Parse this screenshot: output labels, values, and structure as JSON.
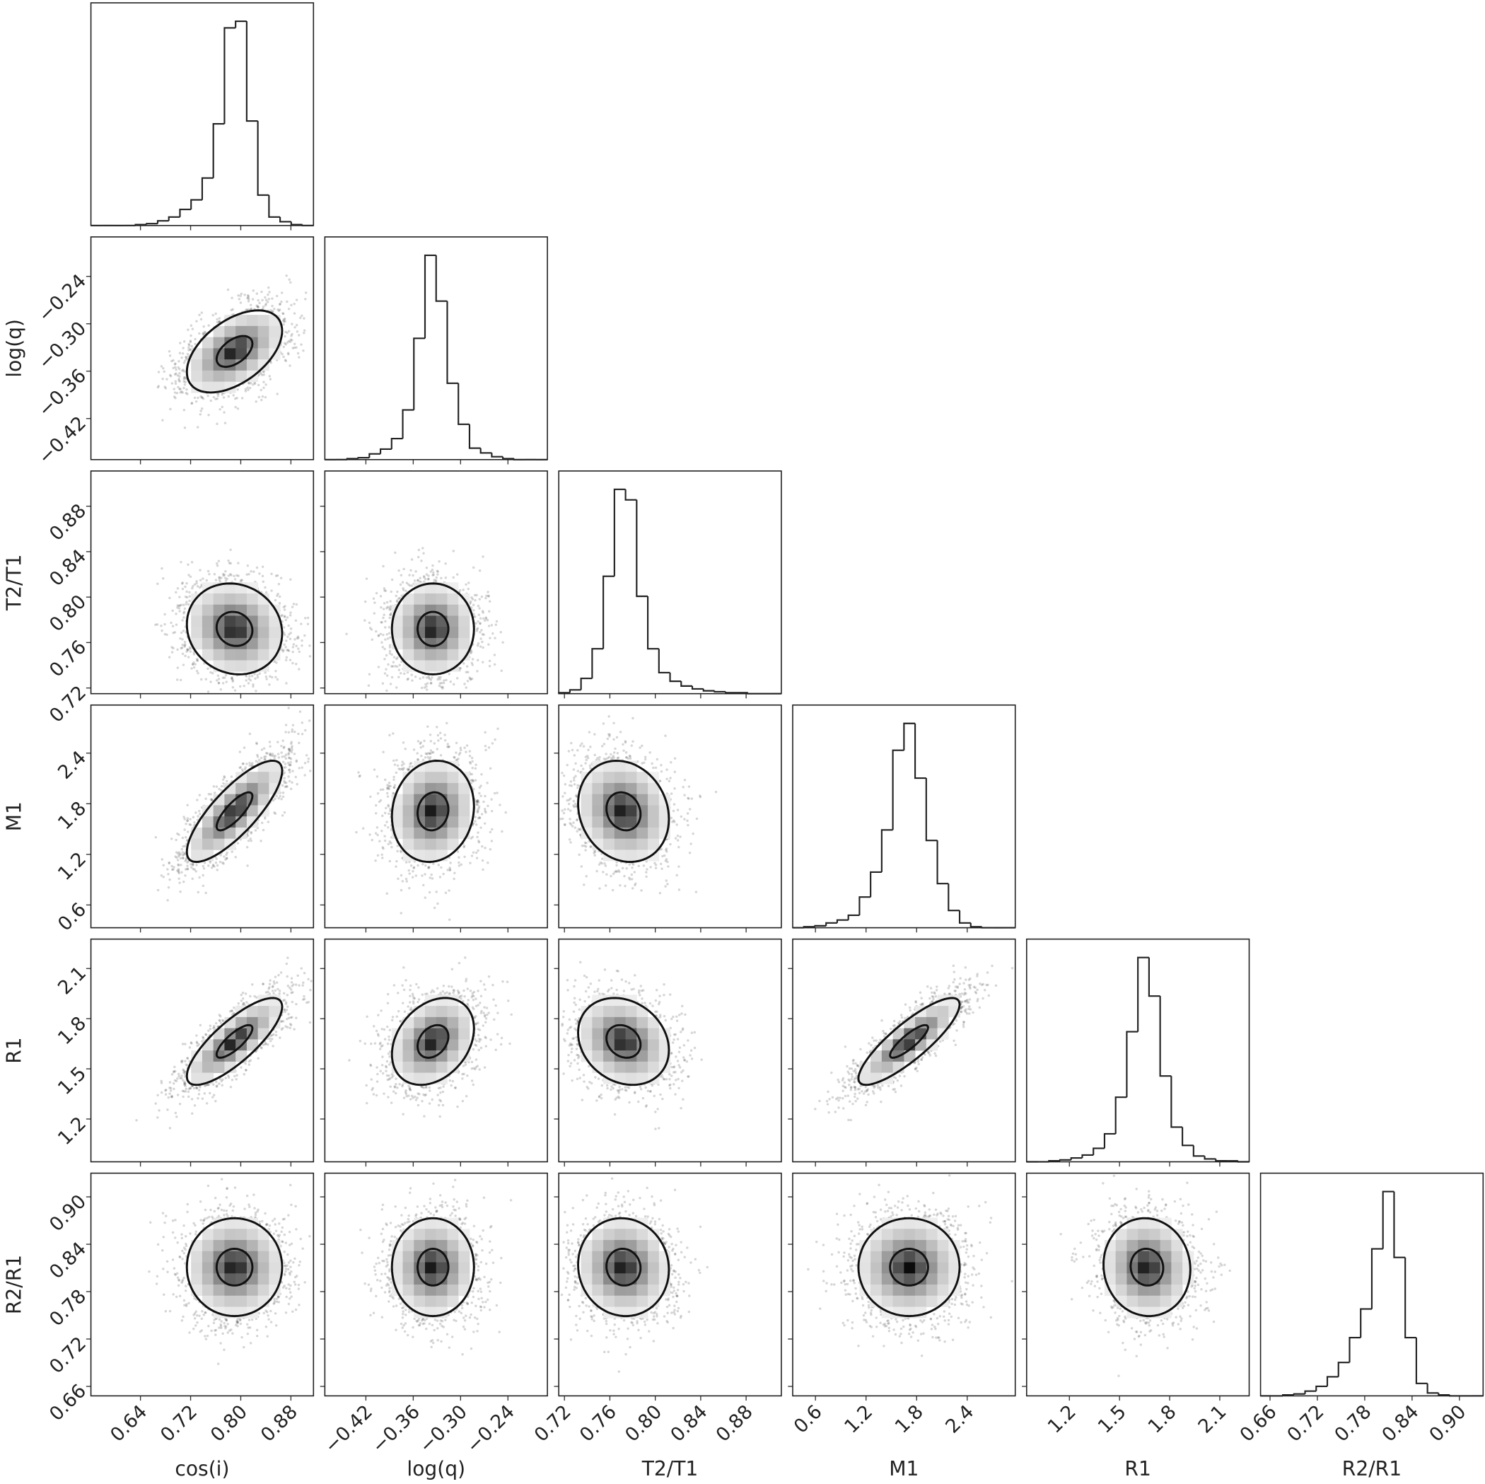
{
  "chart_data": {
    "type": "corner",
    "parameters": [
      {
        "label": "cos(i)",
        "lim": [
          0.561,
          0.916
        ],
        "ticks": [
          0.64,
          0.72,
          {
            "value": 0.8,
            "label": "0.80"
          },
          0.88
        ],
        "mean": 0.79,
        "sd": 0.038,
        "counts": [
          0,
          0,
          0,
          0,
          1,
          2,
          5,
          9,
          17,
          27,
          50,
          107,
          208,
          215,
          110,
          32,
          9,
          4,
          1,
          0
        ]
      },
      {
        "label": "log(q)",
        "lim": [
          -0.472,
          -0.19
        ],
        "ticks": [
          {
            "value": -0.42,
            "label": "−0.42"
          },
          {
            "value": -0.36,
            "label": "−0.36"
          },
          {
            "value": -0.3,
            "label": "−0.30"
          },
          {
            "value": -0.24,
            "label": "−0.24"
          }
        ],
        "mean": -0.335,
        "sd": 0.026,
        "counts": [
          0,
          0,
          1,
          2,
          6,
          11,
          22,
          52,
          127,
          214,
          166,
          80,
          37,
          12,
          7,
          3,
          1,
          0,
          0,
          0
        ]
      },
      {
        "label": "T2/T1",
        "lim": [
          0.715,
          0.911
        ],
        "ticks": [
          0.72,
          0.76,
          {
            "value": 0.8,
            "label": "0.80"
          },
          0.84,
          0.88
        ],
        "mean": 0.772,
        "sd": 0.02,
        "counts": [
          1,
          4,
          16,
          47,
          123,
          214,
          203,
          102,
          47,
          22,
          13,
          8,
          5,
          3,
          2,
          1,
          1,
          0,
          0,
          0
        ]
      },
      {
        "label": "M1",
        "lim": [
          0.33,
          2.97
        ],
        "ticks": [
          0.6,
          1.2,
          1.8,
          2.4
        ],
        "mean": 1.71,
        "sd": 0.3,
        "counts": [
          0,
          1,
          2,
          5,
          8,
          13,
          32,
          58,
          102,
          185,
          213,
          156,
          91,
          46,
          18,
          5,
          1,
          0,
          0,
          0
        ]
      },
      {
        "label": "R1",
        "lim": [
          0.944,
          2.276
        ],
        "ticks": [
          1.2,
          1.5,
          1.8,
          2.1
        ],
        "mean": 1.664,
        "sd": 0.13,
        "counts": [
          0,
          0,
          1,
          2,
          4,
          7,
          14,
          29,
          67,
          135,
          212,
          172,
          89,
          36,
          17,
          6,
          3,
          1,
          1,
          0
        ]
      },
      {
        "label": "R2/R1",
        "lim": [
          0.648,
          0.93
        ],
        "ticks": [
          0.66,
          0.72,
          0.78,
          0.84,
          {
            "value": 0.9,
            "label": "0.90"
          }
        ],
        "mean": 0.811,
        "sd": 0.031,
        "counts": [
          0,
          0,
          1,
          2,
          5,
          10,
          20,
          35,
          61,
          91,
          154,
          214,
          145,
          61,
          13,
          3,
          1,
          0,
          0,
          0
        ]
      }
    ],
    "correlations": [
      [
        0.5
      ],
      [
        -0.1,
        0
      ],
      [
        0.8,
        0.1,
        -0.15
      ],
      [
        0.8,
        0.3,
        -0.2,
        0.85
      ],
      [
        0,
        0,
        -0.05,
        0,
        -0.05
      ]
    ]
  }
}
